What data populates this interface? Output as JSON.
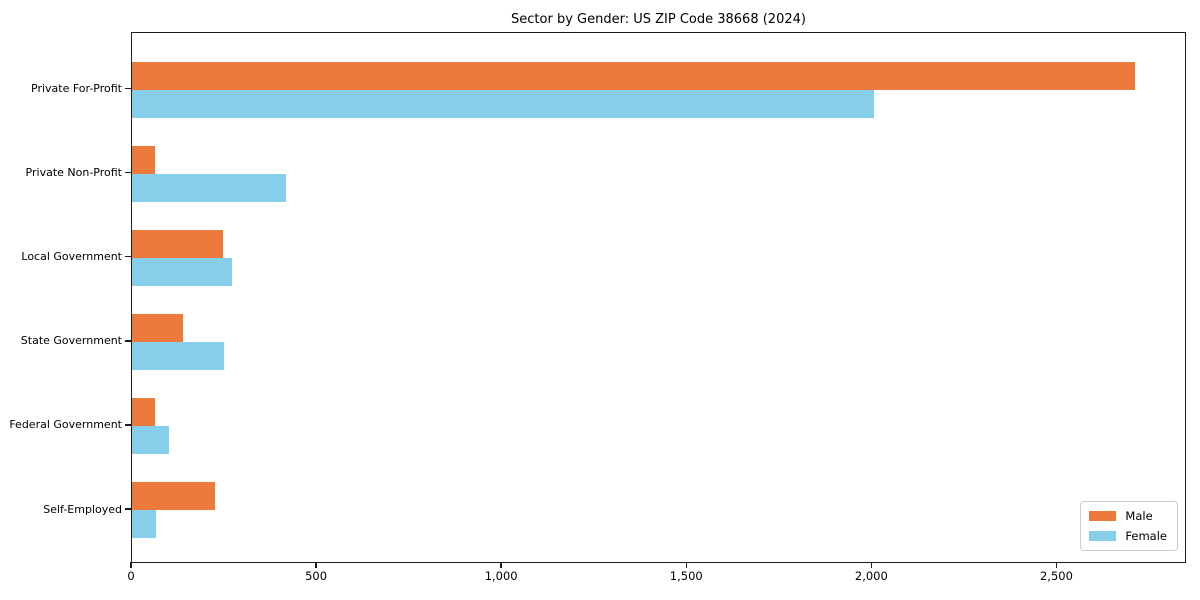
{
  "chart_data": {
    "type": "bar",
    "orientation": "horizontal",
    "title": "Sector by Gender: US ZIP Code 38668 (2024)",
    "categories": [
      "Private For-Profit",
      "Private Non-Profit",
      "Local Government",
      "State Government",
      "Federal Government",
      "Self-Employed"
    ],
    "series": [
      {
        "name": "Male",
        "color": "#EC7A3C",
        "values": [
          2710,
          63,
          245,
          137,
          61,
          223
        ]
      },
      {
        "name": "Female",
        "color": "#87CEEB",
        "values": [
          2005,
          415,
          270,
          248,
          101,
          64
        ]
      }
    ],
    "xlabel": "",
    "ylabel": "",
    "xlim": [
      0,
      2850
    ],
    "x_ticks": [
      0,
      500,
      1000,
      1500,
      2000,
      2500
    ],
    "x_tick_labels": [
      "0",
      "500",
      "1,000",
      "1,500",
      "2,000",
      "2,500"
    ],
    "grid": false,
    "legend": {
      "position": "lower right",
      "entries": [
        "Male",
        "Female"
      ]
    }
  }
}
